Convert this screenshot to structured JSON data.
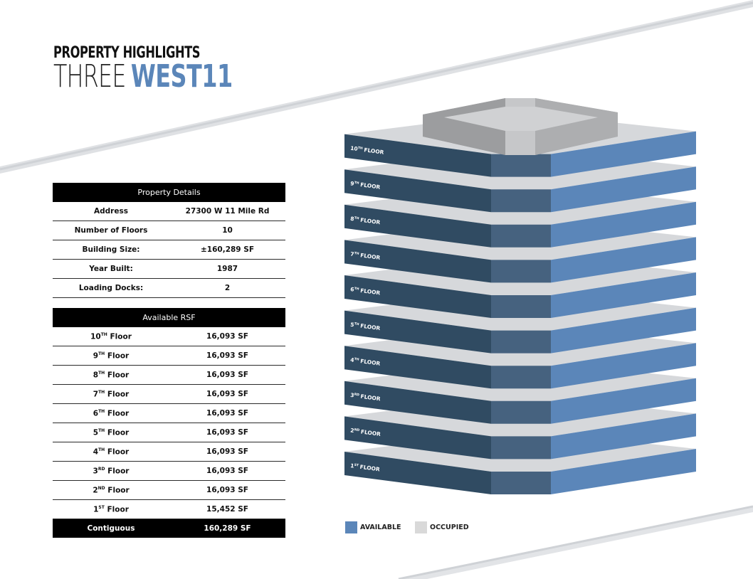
{
  "header": {
    "line1": "PROPERTY HIGHLIGHTS",
    "title_prefix": "THREE",
    "title_emphasis": "WEST11"
  },
  "colors": {
    "available": "#5b86b9",
    "occupied": "#d9d9d9",
    "dark_panel": "#304b62",
    "mid_panel": "#46627f",
    "accent_text": "#5b86b9"
  },
  "property_details": {
    "title": "Property Details",
    "rows": [
      {
        "label": "Address",
        "value": "27300 W 11 Mile Rd"
      },
      {
        "label": "Number of Floors",
        "value": "10"
      },
      {
        "label": "Building Size:",
        "value": "±160,289 SF"
      },
      {
        "label": "Year Built:",
        "value": "1987"
      },
      {
        "label": "Loading Docks:",
        "value": "2"
      }
    ]
  },
  "available_rsf": {
    "title": "Available RSF",
    "rows": [
      {
        "num": "10",
        "sup": "TH",
        "word": "Floor",
        "value": "16,093 SF"
      },
      {
        "num": "9",
        "sup": "TH",
        "word": "Floor",
        "value": "16,093 SF"
      },
      {
        "num": "8",
        "sup": "TH",
        "word": "Floor",
        "value": "16,093 SF"
      },
      {
        "num": "7",
        "sup": "TH",
        "word": "Floor",
        "value": "16,093 SF"
      },
      {
        "num": "6",
        "sup": "TH",
        "word": "Floor",
        "value": "16,093 SF"
      },
      {
        "num": "5",
        "sup": "TH",
        "word": "Floor",
        "value": "16,093 SF"
      },
      {
        "num": "4",
        "sup": "TH",
        "word": "Floor",
        "value": "16,093 SF"
      },
      {
        "num": "3",
        "sup": "RD",
        "word": "Floor",
        "value": "16,093 SF"
      },
      {
        "num": "2",
        "sup": "ND",
        "word": "Floor",
        "value": "16,093 SF"
      },
      {
        "num": "1",
        "sup": "ST",
        "word": "Floor",
        "value": "15,452 SF"
      }
    ],
    "total": {
      "label": "Contiguous",
      "value": "160,289 SF"
    }
  },
  "building": {
    "floors": [
      {
        "num": "10",
        "sup": "TH",
        "word": "FLOOR",
        "status": "available"
      },
      {
        "num": "9",
        "sup": "TH",
        "word": "FLOOR",
        "status": "available"
      },
      {
        "num": "8",
        "sup": "TH",
        "word": "FLOOR",
        "status": "available"
      },
      {
        "num": "7",
        "sup": "TH",
        "word": "FLOOR",
        "status": "available"
      },
      {
        "num": "6",
        "sup": "TH",
        "word": "FLOOR",
        "status": "available"
      },
      {
        "num": "5",
        "sup": "TH",
        "word": "FLOOR",
        "status": "available"
      },
      {
        "num": "4",
        "sup": "TH",
        "word": "FLOOR",
        "status": "available"
      },
      {
        "num": "3",
        "sup": "RD",
        "word": "FLOOR",
        "status": "available"
      },
      {
        "num": "2",
        "sup": "ND",
        "word": "FLOOR",
        "status": "available"
      },
      {
        "num": "1",
        "sup": "ST",
        "word": "FLOOR",
        "status": "available"
      }
    ]
  },
  "legend": {
    "available_label": "AVAILABLE",
    "occupied_label": "OCCUPIED"
  }
}
